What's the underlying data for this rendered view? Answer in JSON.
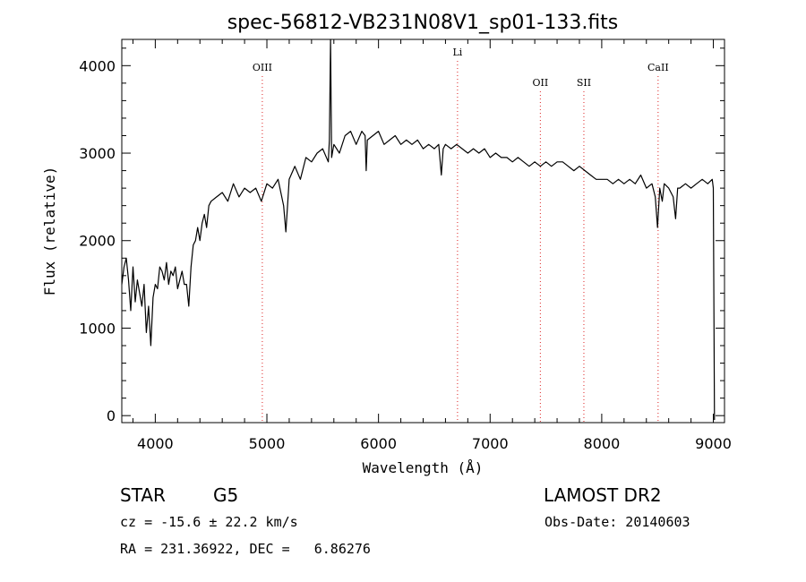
{
  "chart_data": {
    "type": "line",
    "title": "spec-56812-VB231N08V1_sp01-133.fits",
    "xlabel": "Wavelength (Å)",
    "ylabel": "Flux (relative)",
    "xlim": [
      3700,
      9100
    ],
    "ylim": [
      -80,
      4300
    ],
    "xticks": [
      4000,
      5000,
      6000,
      7000,
      8000,
      9000
    ],
    "yticks": [
      0,
      1000,
      2000,
      3000,
      4000
    ],
    "grid": false,
    "series": [
      {
        "color": "#000000",
        "x": [
          3700,
          3720,
          3740,
          3760,
          3780,
          3800,
          3820,
          3840,
          3860,
          3880,
          3900,
          3920,
          3940,
          3960,
          3980,
          4000,
          4020,
          4040,
          4060,
          4080,
          4100,
          4120,
          4140,
          4160,
          4180,
          4200,
          4220,
          4240,
          4260,
          4280,
          4300,
          4320,
          4340,
          4360,
          4380,
          4400,
          4420,
          4440,
          4460,
          4480,
          4500,
          4550,
          4600,
          4650,
          4700,
          4750,
          4800,
          4850,
          4900,
          4950,
          5000,
          5050,
          5100,
          5150,
          5170,
          5190,
          5200,
          5250,
          5300,
          5350,
          5400,
          5450,
          5500,
          5550,
          5560,
          5570,
          5580,
          5600,
          5650,
          5700,
          5750,
          5800,
          5850,
          5880,
          5890,
          5900,
          5950,
          6000,
          6050,
          6100,
          6150,
          6200,
          6250,
          6300,
          6350,
          6400,
          6450,
          6500,
          6540,
          6563,
          6580,
          6600,
          6650,
          6700,
          6750,
          6800,
          6850,
          6900,
          6950,
          7000,
          7050,
          7100,
          7150,
          7200,
          7250,
          7300,
          7350,
          7400,
          7450,
          7500,
          7550,
          7600,
          7650,
          7700,
          7750,
          7800,
          7850,
          7900,
          7950,
          8000,
          8050,
          8100,
          8150,
          8200,
          8250,
          8300,
          8350,
          8400,
          8450,
          8480,
          8500,
          8520,
          8542,
          8560,
          8600,
          8640,
          8662,
          8680,
          8700,
          8750,
          8800,
          8850,
          8900,
          8950,
          8990,
          9000,
          9010
        ],
        "values": [
          1500,
          1700,
          1800,
          1550,
          1200,
          1700,
          1300,
          1550,
          1400,
          1250,
          1500,
          950,
          1250,
          800,
          1350,
          1500,
          1450,
          1700,
          1650,
          1550,
          1750,
          1500,
          1650,
          1600,
          1700,
          1450,
          1550,
          1650,
          1500,
          1500,
          1250,
          1700,
          1950,
          2000,
          2150,
          2000,
          2200,
          2300,
          2150,
          2400,
          2450,
          2500,
          2550,
          2450,
          2650,
          2500,
          2600,
          2550,
          2600,
          2450,
          2650,
          2600,
          2700,
          2400,
          2100,
          2500,
          2700,
          2850,
          2700,
          2950,
          2900,
          3000,
          3050,
          2900,
          3150,
          4300,
          2950,
          3100,
          3000,
          3200,
          3250,
          3100,
          3250,
          3200,
          2800,
          3150,
          3200,
          3250,
          3100,
          3150,
          3200,
          3100,
          3150,
          3100,
          3150,
          3050,
          3100,
          3050,
          3100,
          2750,
          3050,
          3100,
          3050,
          3100,
          3050,
          3000,
          3050,
          3000,
          3050,
          2950,
          3000,
          2950,
          2950,
          2900,
          2950,
          2900,
          2850,
          2900,
          2850,
          2900,
          2850,
          2900,
          2900,
          2850,
          2800,
          2850,
          2800,
          2750,
          2700,
          2700,
          2700,
          2650,
          2700,
          2650,
          2700,
          2650,
          2750,
          2600,
          2650,
          2500,
          2150,
          2600,
          2450,
          2650,
          2600,
          2500,
          2250,
          2600,
          2600,
          2650,
          2600,
          2650,
          2700,
          2650,
          2700,
          2600,
          -50
        ]
      }
    ],
    "annotations": [
      {
        "label": "OIII",
        "x": 4959
      },
      {
        "label": "Li",
        "x": 6708
      },
      {
        "label": "OII",
        "x": 7450
      },
      {
        "label": "SII",
        "x": 7840
      },
      {
        "label": "CaII",
        "x": 8505
      }
    ]
  },
  "info": {
    "object_class": "STAR",
    "subclass": "G5",
    "survey": "LAMOST DR2",
    "cz": "cz = -15.6 ± 22.2 km/s",
    "obs_date": "Obs-Date: 20140603",
    "coords": "RA = 231.36922, DEC =   6.86276"
  }
}
